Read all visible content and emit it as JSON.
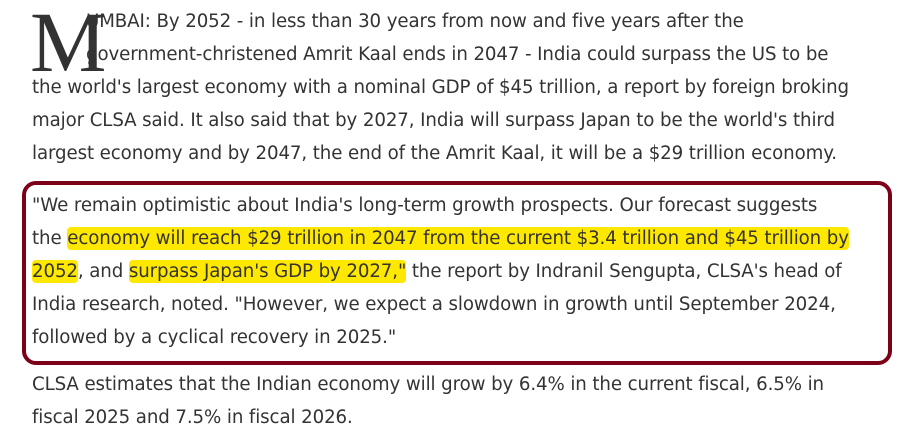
{
  "article": {
    "drop_cap": "M",
    "para1_lines": [
      "UMBAI: By 2052 - in less than 30 years from now and five years after the",
      "government-christened Amrit Kaal ends in 2047 - India could surpass the US to be",
      "the world's largest economy with a nominal GDP of $45 trillion, a report by foreign broking",
      "major CLSA said. It also said that by 2027, India will surpass Japan to be the world's third",
      "largest economy and by 2047, the end of the Amrit Kaal, it will be a $29 trillion economy."
    ],
    "quote": {
      "line1": "\"We remain optimistic about India's long-term growth prospects. Our forecast suggests",
      "line2_pre": "the ",
      "line2_hl": "economy will reach $29 trillion in 2047 from the current $3.4 trillion and $45 trillion by",
      "line3_hl1": "2052",
      "line3_mid": ", and ",
      "line3_hl2": "surpass Japan's GDP by 2027,\"",
      "line3_post": " the report by Indranil Sengupta, CLSA's head of",
      "line4": "India research, noted. \"However, we expect a slowdown in growth until September 2024,",
      "line5": "followed by a cyclical recovery in 2025.\""
    },
    "para3_lines": [
      "CLSA estimates that the Indian economy will grow by 6.4% in the current fiscal, 6.5% in",
      "fiscal 2025 and 7.5% in fiscal 2026."
    ]
  },
  "colors": {
    "box_border": "#7d0019",
    "highlight": "#ffe800",
    "text": "#333333"
  }
}
